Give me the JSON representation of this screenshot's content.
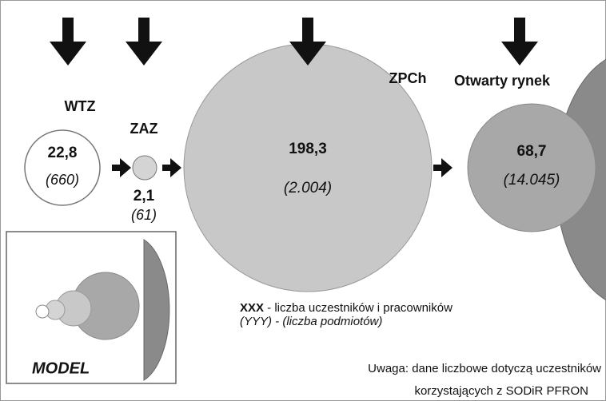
{
  "nodes": [
    {
      "label": "WTZ",
      "value": "22,8",
      "count": "(660)"
    },
    {
      "label": "ZAZ",
      "value": "2,1",
      "count": "(61)"
    },
    {
      "label": "ZPCh",
      "value": "198,3",
      "count": "(2.004)"
    },
    {
      "label": "Otwarty rynek",
      "value": "68,7",
      "count": "(14.045)"
    }
  ],
  "legend": {
    "value_key": "XXX",
    "value_text": " - liczba uczestników i pracowników",
    "count_text": "(YYY) - (liczba podmiotów)"
  },
  "model": {
    "label": "MODEL"
  },
  "note": [
    "Uwaga: dane liczbowe dotyczą uczestników",
    "korzystających z SODiR PFRON"
  ]
}
